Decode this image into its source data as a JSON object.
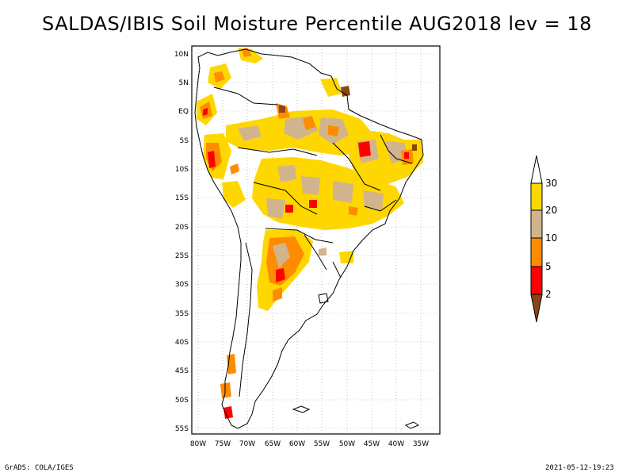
{
  "title": "SALDAS/IBIS Soil Moisture Percentile AUG2018 lev = 18",
  "footer": {
    "left": "GrADS: COLA/IGES",
    "right": "2021-05-12-19:23"
  },
  "colors": {
    "brown": "#8b4513",
    "red": "#ff0000",
    "orange": "#ff8c00",
    "tan": "#d2b48c",
    "gold": "#ffd700",
    "white": "#ffffff"
  },
  "chart_data": {
    "type": "heatmap",
    "title": "SALDAS/IBIS Soil Moisture Percentile AUG2018 lev = 18",
    "lon_ticks": [
      "80W",
      "75W",
      "70W",
      "65W",
      "60W",
      "55W",
      "50W",
      "45W",
      "40W",
      "35W"
    ],
    "lat_ticks": [
      "10N",
      "5N",
      "EQ",
      "5S",
      "10S",
      "15S",
      "20S",
      "25S",
      "30S",
      "35S",
      "40S",
      "45S",
      "50S",
      "55S"
    ],
    "xlim": [
      -81,
      -33
    ],
    "ylim": [
      -56,
      12
    ],
    "grid": true,
    "colorbar": {
      "labels": [
        "2",
        "5",
        "10",
        "20",
        "30"
      ],
      "classes": [
        {
          "range": "<2",
          "color": "#8b4513"
        },
        {
          "range": "2-5",
          "color": "#ff0000"
        },
        {
          "range": "5-10",
          "color": "#ff8c00"
        },
        {
          "range": "10-20",
          "color": "#d2b48c"
        },
        {
          "range": "20-30",
          "color": "#ffd700"
        },
        {
          "range": ">30",
          "color": "#ffffff"
        }
      ]
    }
  }
}
